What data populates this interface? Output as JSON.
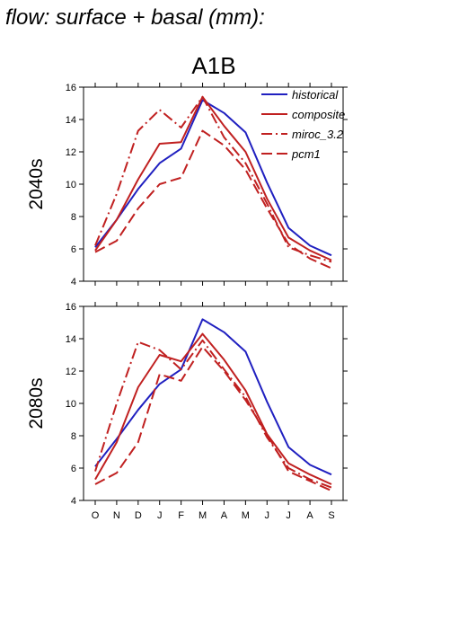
{
  "page": {
    "title": "d flow: surface + basal (mm):",
    "scenario": "A1B"
  },
  "chart_data": [
    {
      "type": "line",
      "panel_label": "2040s",
      "categories": [
        "O",
        "N",
        "D",
        "J",
        "F",
        "M",
        "A",
        "M",
        "J",
        "J",
        "A",
        "S"
      ],
      "ylim": [
        4,
        16
      ],
      "yticks": [
        4,
        6,
        8,
        10,
        12,
        14,
        16
      ],
      "legend_position": "top-right",
      "series": [
        {
          "name": "historical",
          "color": "#2020c0",
          "dash": "solid",
          "values": [
            6.1,
            7.8,
            9.7,
            11.3,
            12.2,
            15.2,
            14.4,
            13.2,
            10.1,
            7.3,
            6.2,
            5.6
          ]
        },
        {
          "name": "composite",
          "color": "#c02020",
          "dash": "solid",
          "values": [
            5.9,
            7.8,
            10.3,
            12.5,
            12.6,
            15.4,
            13.6,
            12.0,
            9.1,
            6.7,
            5.9,
            5.3
          ]
        },
        {
          "name": "miroc_3.2",
          "color": "#c02020",
          "dash": "dashdot",
          "values": [
            6.2,
            9.4,
            13.3,
            14.6,
            13.5,
            15.4,
            12.9,
            11.3,
            8.8,
            6.1,
            5.6,
            5.2
          ]
        },
        {
          "name": "pcm1",
          "color": "#c02020",
          "dash": "dash",
          "values": [
            5.8,
            6.5,
            8.5,
            10.0,
            10.4,
            13.3,
            12.4,
            10.9,
            8.5,
            6.3,
            5.4,
            4.8
          ]
        }
      ]
    },
    {
      "type": "line",
      "panel_label": "2080s",
      "categories": [
        "O",
        "N",
        "D",
        "J",
        "F",
        "M",
        "A",
        "M",
        "J",
        "J",
        "A",
        "S"
      ],
      "ylim": [
        4,
        16
      ],
      "yticks": [
        4,
        6,
        8,
        10,
        12,
        14,
        16
      ],
      "series": [
        {
          "name": "historical",
          "color": "#2020c0",
          "dash": "solid",
          "values": [
            6.1,
            7.8,
            9.6,
            11.2,
            12.1,
            15.2,
            14.4,
            13.2,
            10.1,
            7.3,
            6.2,
            5.6
          ]
        },
        {
          "name": "composite",
          "color": "#c02020",
          "dash": "solid",
          "values": [
            5.3,
            7.6,
            11.0,
            13.0,
            12.6,
            14.3,
            12.7,
            10.8,
            8.1,
            6.3,
            5.6,
            5.0
          ]
        },
        {
          "name": "miroc_3.2",
          "color": "#c02020",
          "dash": "dashdot",
          "values": [
            5.8,
            10.0,
            13.8,
            13.3,
            12.1,
            13.9,
            12.1,
            10.4,
            7.9,
            6.0,
            5.3,
            4.8
          ]
        },
        {
          "name": "pcm1",
          "color": "#c02020",
          "dash": "dash",
          "values": [
            5.0,
            5.7,
            7.6,
            11.8,
            11.4,
            13.5,
            12.0,
            10.2,
            8.1,
            5.8,
            5.2,
            4.6
          ]
        }
      ]
    }
  ]
}
